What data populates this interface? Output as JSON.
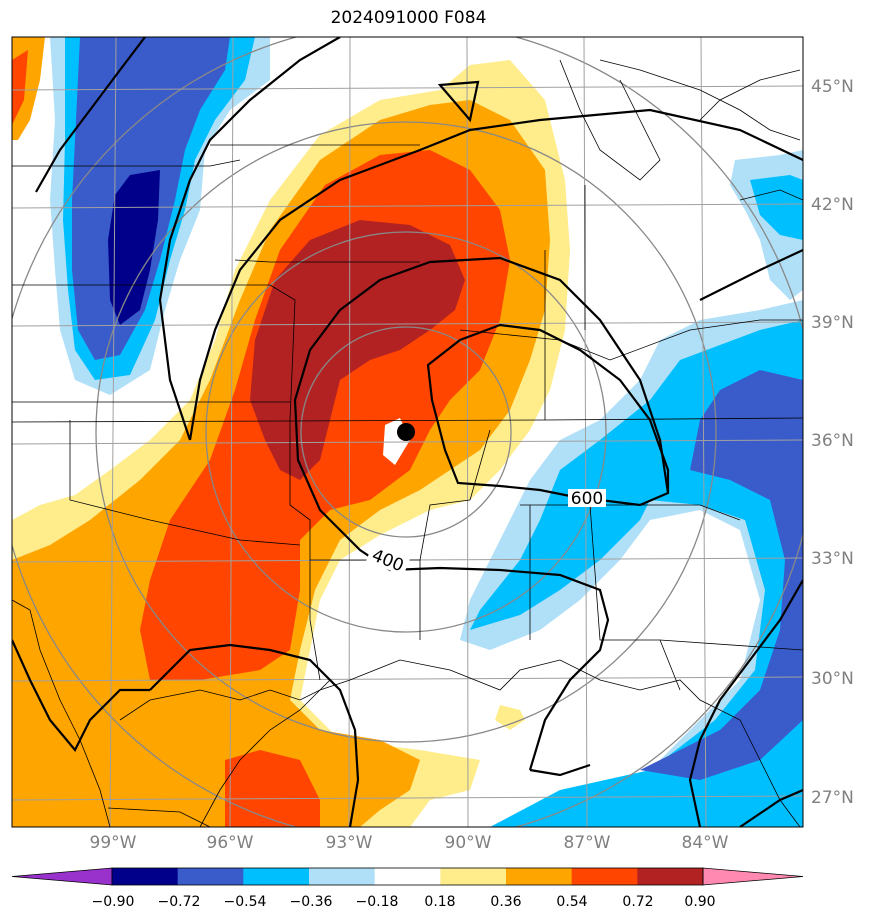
{
  "title": "2024091000 F084",
  "lat_labels": [
    "45°N",
    "42°N",
    "39°N",
    "36°N",
    "33°N",
    "30°N",
    "27°N"
  ],
  "lon_labels": [
    "99°W",
    "96°W",
    "93°W",
    "90°W",
    "87°W",
    "84°W"
  ],
  "contour_labels": [
    "400",
    "600"
  ],
  "colorbar": {
    "ticks": [
      "−0.90",
      "−0.72",
      "−0.54",
      "−0.36",
      "−0.18",
      "0.18",
      "0.36",
      "0.54",
      "0.72",
      "0.90"
    ],
    "colors": [
      "#9932cc",
      "#00008b",
      "#3a5ccb",
      "#00bfff",
      "#b0e0f8",
      "#ffffff",
      "#ffec8b",
      "#ffa500",
      "#ff4500",
      "#b22222",
      "#ff89b0"
    ]
  },
  "colors": {
    "graticule": "#a0a0a0",
    "range_rings": "#888888",
    "contour": "#000000",
    "label_gray": "#808080"
  }
}
